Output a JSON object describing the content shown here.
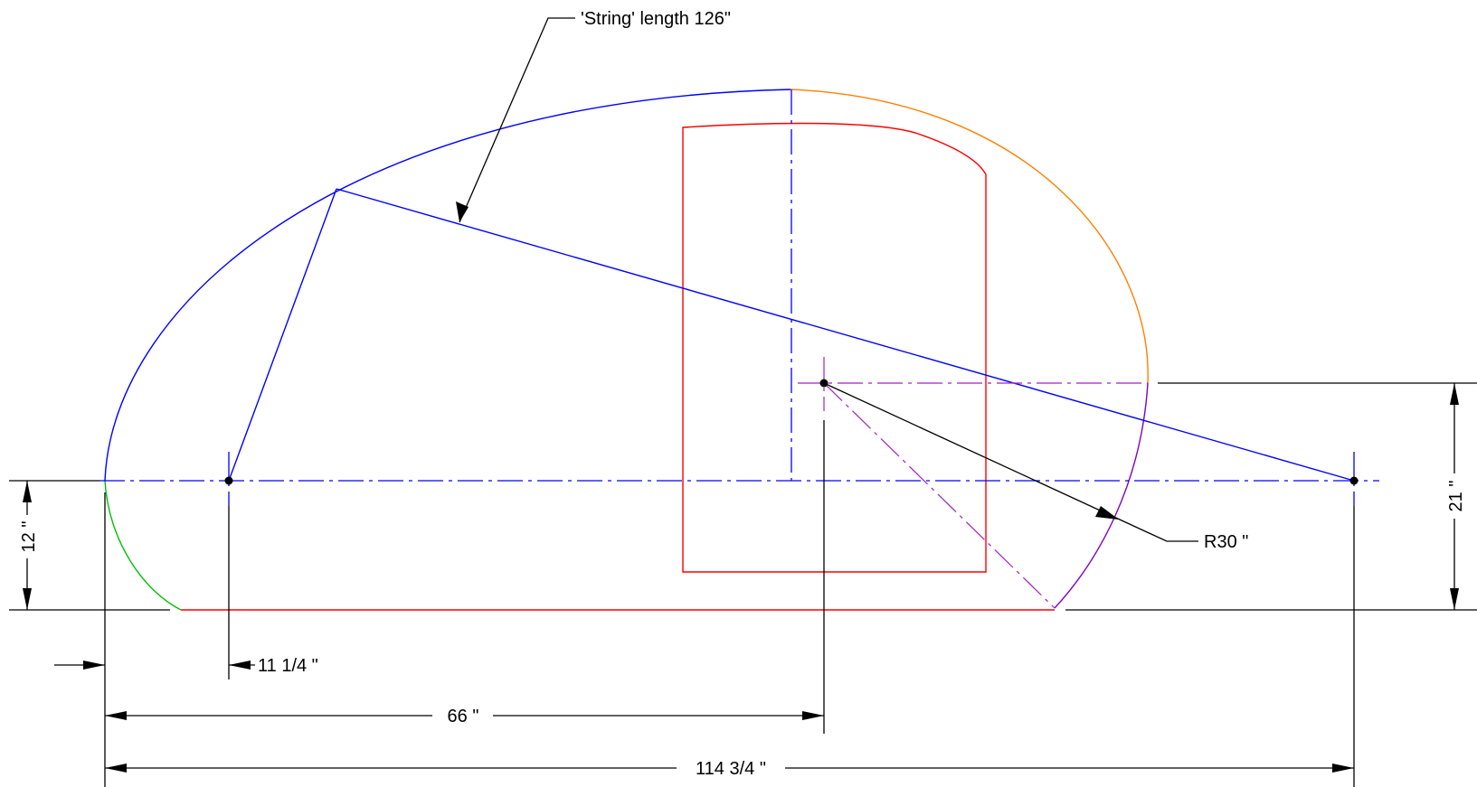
{
  "annotations": {
    "string_length": "'String' length 126\"",
    "radius": "R30 \""
  },
  "dimensions": {
    "total_width": "114 3/4 \"",
    "center_offset": "66 \"",
    "focus_offset": "11 1/4 \"",
    "lower_height": "12 \"",
    "upper_height": "21 \""
  },
  "colors": {
    "ellipse": "#0000ff",
    "upper_right_arc": "#ff8000",
    "lower_right_arc": "#8000c0",
    "lower_left_arc": "#00c000",
    "body_outline": "#ff0000",
    "dimension_lines": "#000000"
  }
}
